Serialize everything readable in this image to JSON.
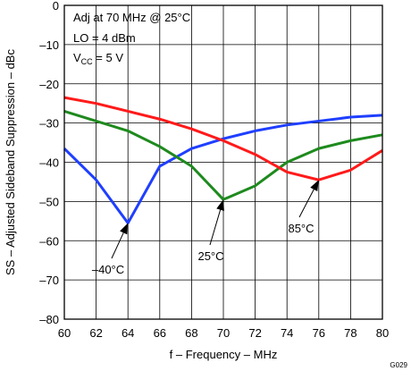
{
  "chart_data": {
    "type": "line",
    "xlabel": "f – Frequency – MHz",
    "ylabel": "SS – Adjusted Sideband Suppression – dBc",
    "xlim": [
      60,
      80
    ],
    "ylim": [
      -80,
      0
    ],
    "x_ticks": [
      60,
      62,
      64,
      66,
      68,
      70,
      72,
      74,
      76,
      78,
      80
    ],
    "y_ticks": [
      0,
      -10,
      -20,
      -30,
      -40,
      -50,
      -60,
      -70,
      -80
    ],
    "x_tick_labels": [
      "60",
      "62",
      "64",
      "66",
      "68",
      "70",
      "72",
      "74",
      "76",
      "78",
      "80"
    ],
    "y_tick_labels": [
      "0",
      "–10",
      "–20",
      "–30",
      "–40",
      "–50",
      "–60",
      "–70",
      "–80"
    ],
    "grid": true,
    "series": [
      {
        "name": "–40°C",
        "color": "#1f3fff",
        "x": [
          60,
          62,
          64,
          66,
          68,
          70,
          72,
          74,
          76,
          78,
          80
        ],
        "y": [
          -36.5,
          -44.5,
          -55.5,
          -41,
          -36.5,
          -34,
          -32,
          -30.5,
          -29.5,
          -28.5,
          -28
        ]
      },
      {
        "name": "25°C",
        "color": "#1e8a1e",
        "x": [
          60,
          62,
          64,
          66,
          68,
          70,
          72,
          74,
          76,
          78,
          80
        ],
        "y": [
          -27,
          -29.5,
          -32,
          -36,
          -41,
          -49.5,
          -46,
          -40,
          -36.5,
          -34.5,
          -33
        ]
      },
      {
        "name": "85°C",
        "color": "#ff1a1a",
        "x": [
          60,
          62,
          64,
          66,
          68,
          70,
          72,
          74,
          76,
          78,
          80
        ],
        "y": [
          -23.5,
          -25,
          -27,
          -29,
          -31.5,
          -34.5,
          -38,
          -42.5,
          -44.5,
          -42,
          -37
        ]
      }
    ],
    "annotations": {
      "conditions": [
        "Adj at 70 MHz @ 25°C",
        "LO = 4 dBm"
      ],
      "vcc_main": "V",
      "vcc_sub": "CC",
      "vcc_value": " =  5 V",
      "labels": [
        {
          "text": "–40°C",
          "x": 64,
          "y": -55.5
        },
        {
          "text": "25°C",
          "x": 70,
          "y": -49.5
        },
        {
          "text": "85°C",
          "x": 76,
          "y": -44.5
        }
      ]
    },
    "figure_code": "G029"
  }
}
